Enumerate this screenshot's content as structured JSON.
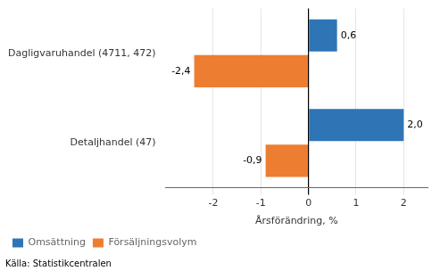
{
  "chart_data": {
    "type": "bar",
    "orientation": "horizontal",
    "categories": [
      "Dagligvaruhandel (4711, 472)",
      "Detaljhandel (47)"
    ],
    "series": [
      {
        "name": "Omsättning",
        "color": "#2E75B6",
        "values": [
          0.6,
          2.0
        ],
        "value_labels": [
          "0,6",
          "2,0"
        ]
      },
      {
        "name": "Försäljningsvolym",
        "color": "#ED7D31",
        "values": [
          -2.4,
          -0.9
        ],
        "value_labels": [
          "-2,4",
          "-0,9"
        ]
      }
    ],
    "xlabel": "Årsförändring, %",
    "xlim": [
      -3.0,
      2.5
    ],
    "xticks": [
      -2,
      -1,
      0,
      1,
      2
    ],
    "grid": true,
    "legend": "bottom",
    "data_labels": true,
    "annotations": [
      "Källa: Statistikcentralen"
    ]
  }
}
